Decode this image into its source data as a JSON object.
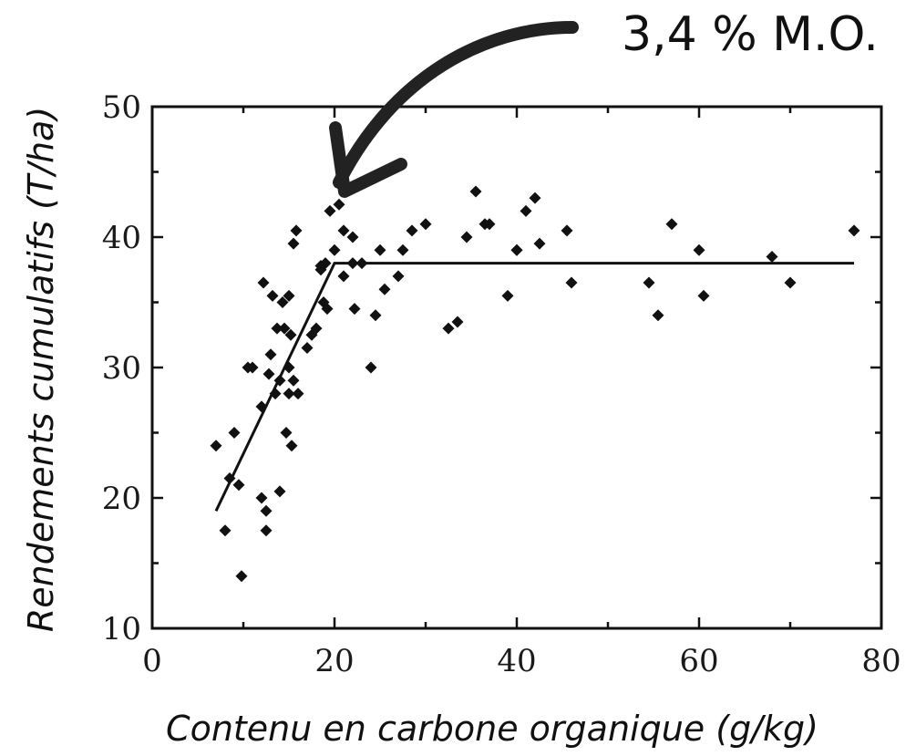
{
  "chart_data": {
    "type": "scatter",
    "title": "",
    "xlabel": "Contenu en carbone organique (g/kg)",
    "ylabel": "Rendements cumulatifs (T/ha)",
    "xlim": [
      0,
      80
    ],
    "ylim": [
      10,
      50
    ],
    "xticks": [
      0,
      20,
      40,
      60,
      80
    ],
    "yticks": [
      10,
      20,
      30,
      40,
      50
    ],
    "grid": false,
    "annotation": {
      "text": "3,4 % M.O.",
      "points_to": [
        20,
        42
      ]
    },
    "series": [
      {
        "type": "scatter",
        "points": [
          [
            7,
            24
          ],
          [
            8,
            17.5
          ],
          [
            8.5,
            21.5
          ],
          [
            9,
            25
          ],
          [
            9.5,
            21
          ],
          [
            9.8,
            14
          ],
          [
            10.5,
            30
          ],
          [
            11,
            30
          ],
          [
            12,
            27
          ],
          [
            12,
            20
          ],
          [
            12.2,
            36.5
          ],
          [
            12.5,
            17.5
          ],
          [
            12.5,
            19
          ],
          [
            12.8,
            29.5
          ],
          [
            13,
            31
          ],
          [
            13.2,
            35.5
          ],
          [
            13.5,
            28
          ],
          [
            13.7,
            33
          ],
          [
            14,
            29
          ],
          [
            14,
            20.5
          ],
          [
            14.3,
            35
          ],
          [
            14.5,
            33
          ],
          [
            14.7,
            25
          ],
          [
            15,
            35.5
          ],
          [
            15,
            30
          ],
          [
            15,
            28
          ],
          [
            15.2,
            32.5
          ],
          [
            15.3,
            24
          ],
          [
            15.5,
            39.5
          ],
          [
            15.5,
            29
          ],
          [
            15.8,
            40.5
          ],
          [
            16,
            28
          ],
          [
            17,
            31.5
          ],
          [
            17.5,
            32.5
          ],
          [
            18,
            33
          ],
          [
            18.5,
            37.5
          ],
          [
            18.5,
            37.8
          ],
          [
            18.8,
            35
          ],
          [
            19,
            38
          ],
          [
            19.2,
            34.5
          ],
          [
            19.5,
            42
          ],
          [
            20,
            39
          ],
          [
            20.5,
            42.5
          ],
          [
            21,
            40.5
          ],
          [
            21,
            37
          ],
          [
            22,
            40
          ],
          [
            22,
            38
          ],
          [
            22.2,
            34.5
          ],
          [
            23,
            38
          ],
          [
            24,
            30
          ],
          [
            24.5,
            34
          ],
          [
            25,
            39
          ],
          [
            25.5,
            36
          ],
          [
            27,
            37
          ],
          [
            27.5,
            39
          ],
          [
            28.5,
            40.5
          ],
          [
            30,
            41
          ],
          [
            32.5,
            33
          ],
          [
            33.5,
            33.5
          ],
          [
            34.5,
            40
          ],
          [
            35.5,
            43.5
          ],
          [
            36.5,
            41
          ],
          [
            37,
            41
          ],
          [
            39,
            35.5
          ],
          [
            40,
            39
          ],
          [
            40,
            39
          ],
          [
            41,
            42
          ],
          [
            42,
            43
          ],
          [
            42.5,
            39.5
          ],
          [
            45.5,
            40.5
          ],
          [
            46,
            36.5
          ],
          [
            54.5,
            36.5
          ],
          [
            55.5,
            34
          ],
          [
            57,
            41
          ],
          [
            60,
            39
          ],
          [
            60.5,
            35.5
          ],
          [
            68,
            38.5
          ],
          [
            70,
            36.5
          ],
          [
            77,
            40.5
          ]
        ]
      },
      {
        "type": "line",
        "name": "",
        "points": [
          [
            7,
            19
          ],
          [
            20,
            38
          ],
          [
            77,
            38
          ]
        ]
      }
    ]
  }
}
